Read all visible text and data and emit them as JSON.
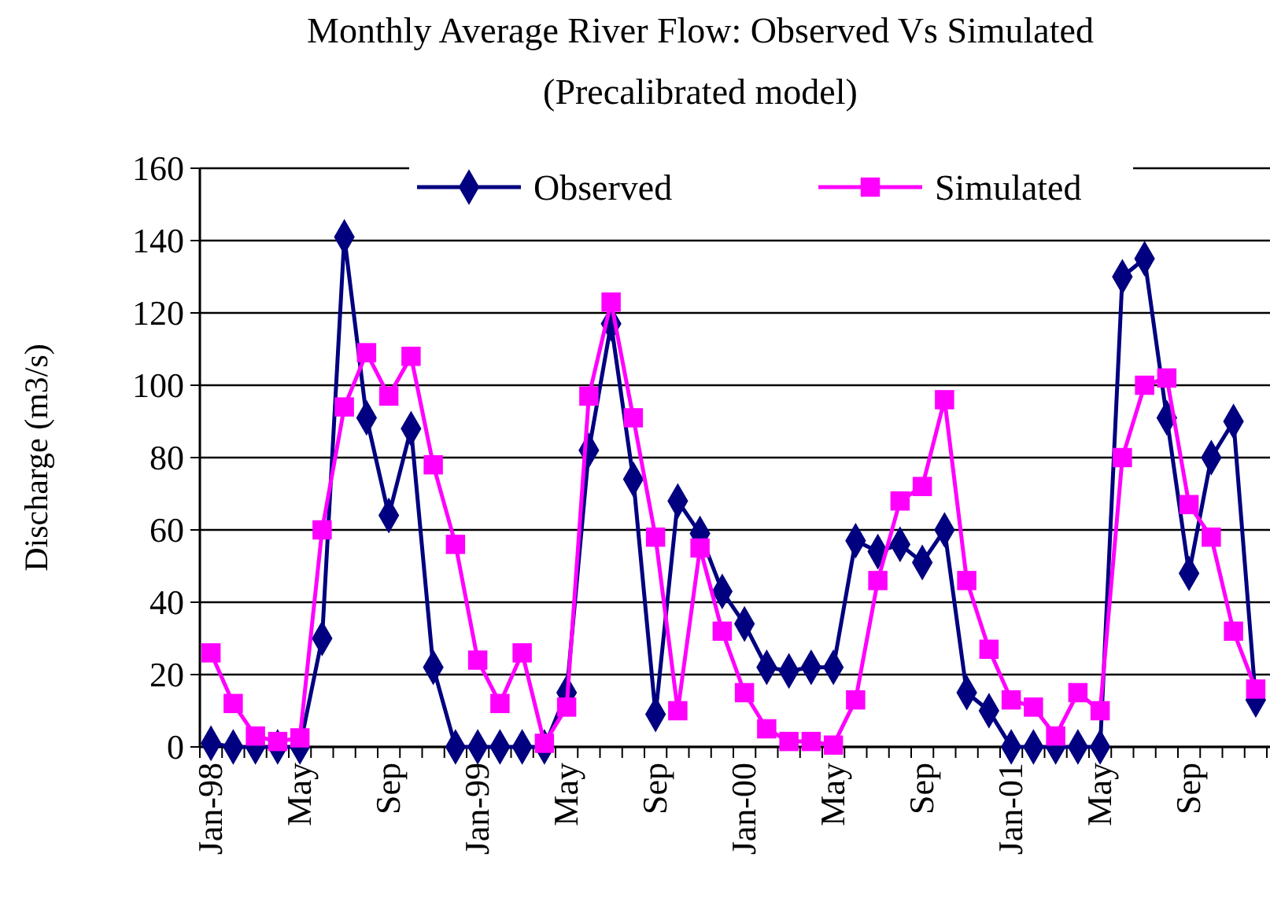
{
  "chart_data": {
    "type": "line",
    "title": "Monthly Average River Flow: Observed Vs Simulated",
    "subtitle": "(Precalibrated model)",
    "ylabel": "Discharge (m3/s)",
    "categories": [
      "Jan-98",
      null,
      null,
      null,
      "May",
      null,
      null,
      null,
      "Sep",
      null,
      null,
      null,
      "Jan-99",
      null,
      null,
      null,
      "May",
      null,
      null,
      null,
      "Sep",
      null,
      null,
      null,
      "Jan-00",
      null,
      null,
      null,
      "May",
      null,
      null,
      null,
      "Sep",
      null,
      null,
      null,
      "Jan-01",
      null,
      null,
      null,
      "May",
      null,
      null,
      null,
      "Sep",
      null,
      null,
      null
    ],
    "series": [
      {
        "name": "Observed",
        "color": "#000080",
        "marker": "diamond",
        "values": [
          1,
          0,
          0,
          0,
          0,
          30,
          141,
          91,
          64,
          88,
          22,
          0,
          0,
          0,
          0,
          0,
          15,
          82,
          117,
          74,
          9,
          68,
          59,
          43,
          34,
          22,
          21,
          22,
          22,
          57,
          54,
          56,
          51,
          60,
          15,
          10,
          0,
          0,
          0,
          0,
          0,
          130,
          135,
          91,
          48,
          80,
          90,
          13
        ]
      },
      {
        "name": "Simulated",
        "color": "#ff00ff",
        "marker": "square",
        "values": [
          26,
          12,
          3,
          1.5,
          2.5,
          60,
          94,
          109,
          97,
          108,
          78,
          56,
          24,
          12,
          26,
          1,
          11,
          97,
          123,
          91,
          58,
          10,
          55,
          32,
          15,
          5,
          1.5,
          1.5,
          0.5,
          13,
          46,
          68,
          72,
          96,
          46,
          27,
          13,
          11,
          3,
          15,
          10,
          80,
          100,
          102,
          67,
          58,
          32,
          16
        ]
      }
    ],
    "ylim": [
      0,
      160
    ],
    "yticks": [
      0,
      20,
      40,
      60,
      80,
      100,
      120,
      140,
      160
    ],
    "grid": "y",
    "legend": "top",
    "line_style": "solid"
  }
}
